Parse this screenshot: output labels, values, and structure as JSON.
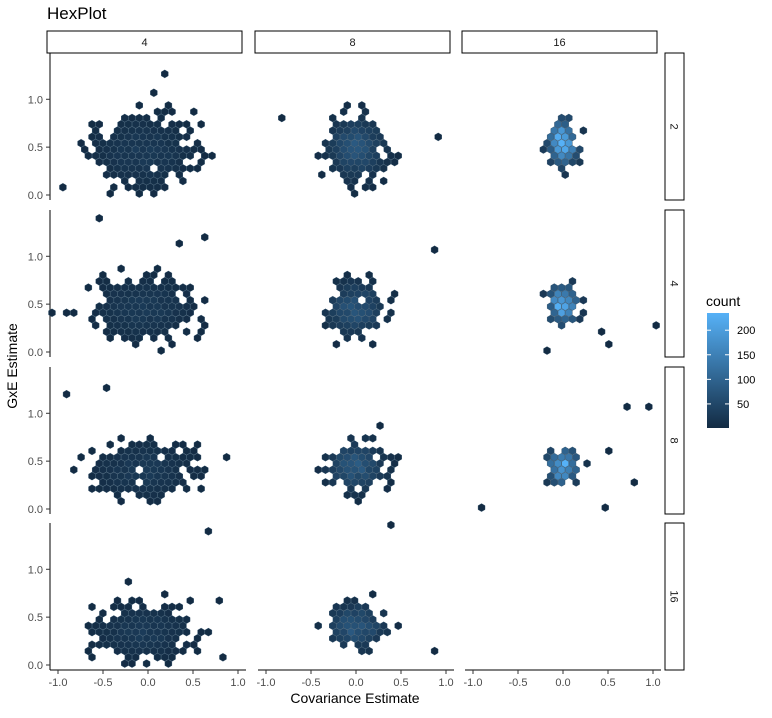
{
  "chart_data": {
    "type": "hexbin",
    "title": "HexPlot",
    "xlabel": "Covariance Estimate",
    "ylabel": "GxE Estimate",
    "xlim": [
      -1.0,
      1.0
    ],
    "ylim": [
      0.0,
      1.4
    ],
    "x_ticks": [
      -1.0,
      -0.5,
      0.0,
      0.5,
      1.0
    ],
    "x_tick_labels": [
      "-1.0",
      "-0.5",
      "0.0",
      "0.5",
      "1.0"
    ],
    "y_ticks": [
      0.0,
      0.5,
      1.0
    ],
    "y_tick_labels": [
      "0.0",
      "0.5",
      "1.0"
    ],
    "col_facets": [
      "4",
      "8",
      "16"
    ],
    "row_facets": [
      "2",
      "4",
      "8",
      "16"
    ],
    "legend": {
      "title": "count",
      "placement": "right",
      "min": 1,
      "max": 235,
      "breaks": [
        50,
        100,
        150,
        200
      ],
      "break_labels": [
        "50",
        "100",
        "150",
        "200"
      ],
      "low_color": "#132B43",
      "high_color": "#56B1F7"
    },
    "panels": [
      {
        "row": "2",
        "col": "4",
        "present": true,
        "center_x": -0.05,
        "center_y": 0.45,
        "spread_x": 0.34,
        "spread_y": 0.22,
        "peak_count": 25
      },
      {
        "row": "2",
        "col": "8",
        "present": true,
        "center_x": 0.0,
        "center_y": 0.5,
        "spread_x": 0.2,
        "spread_y": 0.2,
        "peak_count": 70
      },
      {
        "row": "2",
        "col": "16",
        "present": true,
        "center_x": 0.0,
        "center_y": 0.55,
        "spread_x": 0.11,
        "spread_y": 0.15,
        "peak_count": 230
      },
      {
        "row": "4",
        "col": "4",
        "present": true,
        "center_x": -0.05,
        "center_y": 0.45,
        "spread_x": 0.34,
        "spread_y": 0.2,
        "peak_count": 25
      },
      {
        "row": "4",
        "col": "8",
        "present": true,
        "center_x": 0.0,
        "center_y": 0.45,
        "spread_x": 0.2,
        "spread_y": 0.17,
        "peak_count": 75
      },
      {
        "row": "4",
        "col": "16",
        "present": true,
        "center_x": 0.0,
        "center_y": 0.5,
        "spread_x": 0.11,
        "spread_y": 0.13,
        "peak_count": 225
      },
      {
        "row": "8",
        "col": "4",
        "present": true,
        "center_x": -0.05,
        "center_y": 0.4,
        "spread_x": 0.32,
        "spread_y": 0.18,
        "peak_count": 25
      },
      {
        "row": "8",
        "col": "8",
        "present": true,
        "center_x": 0.0,
        "center_y": 0.45,
        "spread_x": 0.2,
        "spread_y": 0.16,
        "peak_count": 80
      },
      {
        "row": "8",
        "col": "16",
        "present": true,
        "center_x": 0.0,
        "center_y": 0.45,
        "spread_x": 0.11,
        "spread_y": 0.12,
        "peak_count": 230
      },
      {
        "row": "16",
        "col": "4",
        "present": true,
        "center_x": -0.05,
        "center_y": 0.35,
        "spread_x": 0.32,
        "spread_y": 0.17,
        "peak_count": 25
      },
      {
        "row": "16",
        "col": "8",
        "present": true,
        "center_x": 0.0,
        "center_y": 0.4,
        "spread_x": 0.2,
        "spread_y": 0.15,
        "peak_count": 75
      },
      {
        "row": "16",
        "col": "16",
        "present": false
      }
    ]
  }
}
